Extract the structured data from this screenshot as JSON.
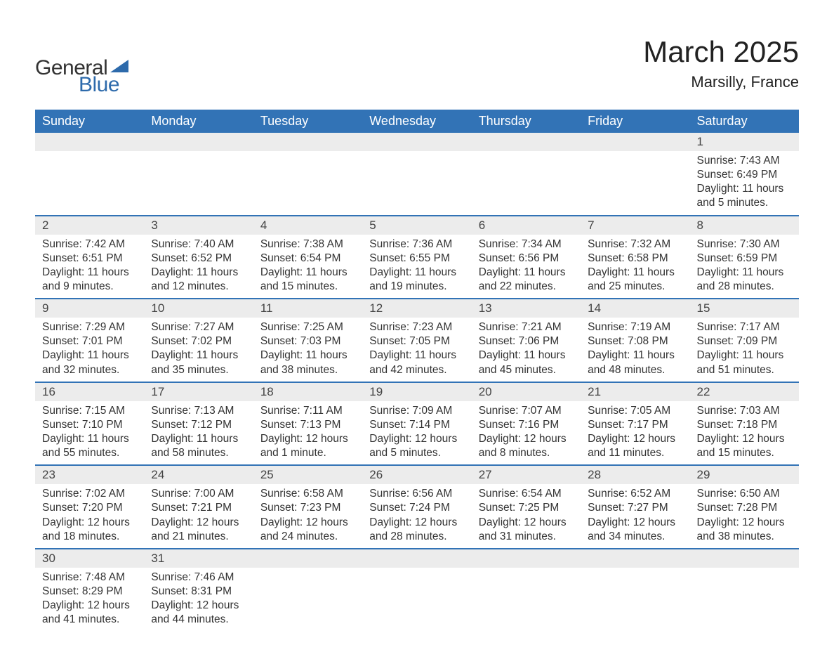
{
  "logo": {
    "general": "General",
    "blue": "Blue",
    "shape_color": "#2d6aab"
  },
  "title": "March 2025",
  "location": "Marsilly, France",
  "header_bg": "#3273b6",
  "daynum_bg": "#ececec",
  "border_color": "#3273b6",
  "text_color": "#333333",
  "day_headers": [
    "Sunday",
    "Monday",
    "Tuesday",
    "Wednesday",
    "Thursday",
    "Friday",
    "Saturday"
  ],
  "weeks": [
    [
      null,
      null,
      null,
      null,
      null,
      null,
      {
        "n": "1",
        "sunrise": "7:43 AM",
        "sunset": "6:49 PM",
        "daylight": "11 hours and 5 minutes."
      }
    ],
    [
      {
        "n": "2",
        "sunrise": "7:42 AM",
        "sunset": "6:51 PM",
        "daylight": "11 hours and 9 minutes."
      },
      {
        "n": "3",
        "sunrise": "7:40 AM",
        "sunset": "6:52 PM",
        "daylight": "11 hours and 12 minutes."
      },
      {
        "n": "4",
        "sunrise": "7:38 AM",
        "sunset": "6:54 PM",
        "daylight": "11 hours and 15 minutes."
      },
      {
        "n": "5",
        "sunrise": "7:36 AM",
        "sunset": "6:55 PM",
        "daylight": "11 hours and 19 minutes."
      },
      {
        "n": "6",
        "sunrise": "7:34 AM",
        "sunset": "6:56 PM",
        "daylight": "11 hours and 22 minutes."
      },
      {
        "n": "7",
        "sunrise": "7:32 AM",
        "sunset": "6:58 PM",
        "daylight": "11 hours and 25 minutes."
      },
      {
        "n": "8",
        "sunrise": "7:30 AM",
        "sunset": "6:59 PM",
        "daylight": "11 hours and 28 minutes."
      }
    ],
    [
      {
        "n": "9",
        "sunrise": "7:29 AM",
        "sunset": "7:01 PM",
        "daylight": "11 hours and 32 minutes."
      },
      {
        "n": "10",
        "sunrise": "7:27 AM",
        "sunset": "7:02 PM",
        "daylight": "11 hours and 35 minutes."
      },
      {
        "n": "11",
        "sunrise": "7:25 AM",
        "sunset": "7:03 PM",
        "daylight": "11 hours and 38 minutes."
      },
      {
        "n": "12",
        "sunrise": "7:23 AM",
        "sunset": "7:05 PM",
        "daylight": "11 hours and 42 minutes."
      },
      {
        "n": "13",
        "sunrise": "7:21 AM",
        "sunset": "7:06 PM",
        "daylight": "11 hours and 45 minutes."
      },
      {
        "n": "14",
        "sunrise": "7:19 AM",
        "sunset": "7:08 PM",
        "daylight": "11 hours and 48 minutes."
      },
      {
        "n": "15",
        "sunrise": "7:17 AM",
        "sunset": "7:09 PM",
        "daylight": "11 hours and 51 minutes."
      }
    ],
    [
      {
        "n": "16",
        "sunrise": "7:15 AM",
        "sunset": "7:10 PM",
        "daylight": "11 hours and 55 minutes."
      },
      {
        "n": "17",
        "sunrise": "7:13 AM",
        "sunset": "7:12 PM",
        "daylight": "11 hours and 58 minutes."
      },
      {
        "n": "18",
        "sunrise": "7:11 AM",
        "sunset": "7:13 PM",
        "daylight": "12 hours and 1 minute."
      },
      {
        "n": "19",
        "sunrise": "7:09 AM",
        "sunset": "7:14 PM",
        "daylight": "12 hours and 5 minutes."
      },
      {
        "n": "20",
        "sunrise": "7:07 AM",
        "sunset": "7:16 PM",
        "daylight": "12 hours and 8 minutes."
      },
      {
        "n": "21",
        "sunrise": "7:05 AM",
        "sunset": "7:17 PM",
        "daylight": "12 hours and 11 minutes."
      },
      {
        "n": "22",
        "sunrise": "7:03 AM",
        "sunset": "7:18 PM",
        "daylight": "12 hours and 15 minutes."
      }
    ],
    [
      {
        "n": "23",
        "sunrise": "7:02 AM",
        "sunset": "7:20 PM",
        "daylight": "12 hours and 18 minutes."
      },
      {
        "n": "24",
        "sunrise": "7:00 AM",
        "sunset": "7:21 PM",
        "daylight": "12 hours and 21 minutes."
      },
      {
        "n": "25",
        "sunrise": "6:58 AM",
        "sunset": "7:23 PM",
        "daylight": "12 hours and 24 minutes."
      },
      {
        "n": "26",
        "sunrise": "6:56 AM",
        "sunset": "7:24 PM",
        "daylight": "12 hours and 28 minutes."
      },
      {
        "n": "27",
        "sunrise": "6:54 AM",
        "sunset": "7:25 PM",
        "daylight": "12 hours and 31 minutes."
      },
      {
        "n": "28",
        "sunrise": "6:52 AM",
        "sunset": "7:27 PM",
        "daylight": "12 hours and 34 minutes."
      },
      {
        "n": "29",
        "sunrise": "6:50 AM",
        "sunset": "7:28 PM",
        "daylight": "12 hours and 38 minutes."
      }
    ],
    [
      {
        "n": "30",
        "sunrise": "7:48 AM",
        "sunset": "8:29 PM",
        "daylight": "12 hours and 41 minutes."
      },
      {
        "n": "31",
        "sunrise": "7:46 AM",
        "sunset": "8:31 PM",
        "daylight": "12 hours and 44 minutes."
      },
      null,
      null,
      null,
      null,
      null
    ]
  ],
  "labels": {
    "sunrise": "Sunrise: ",
    "sunset": "Sunset: ",
    "daylight": "Daylight: "
  }
}
